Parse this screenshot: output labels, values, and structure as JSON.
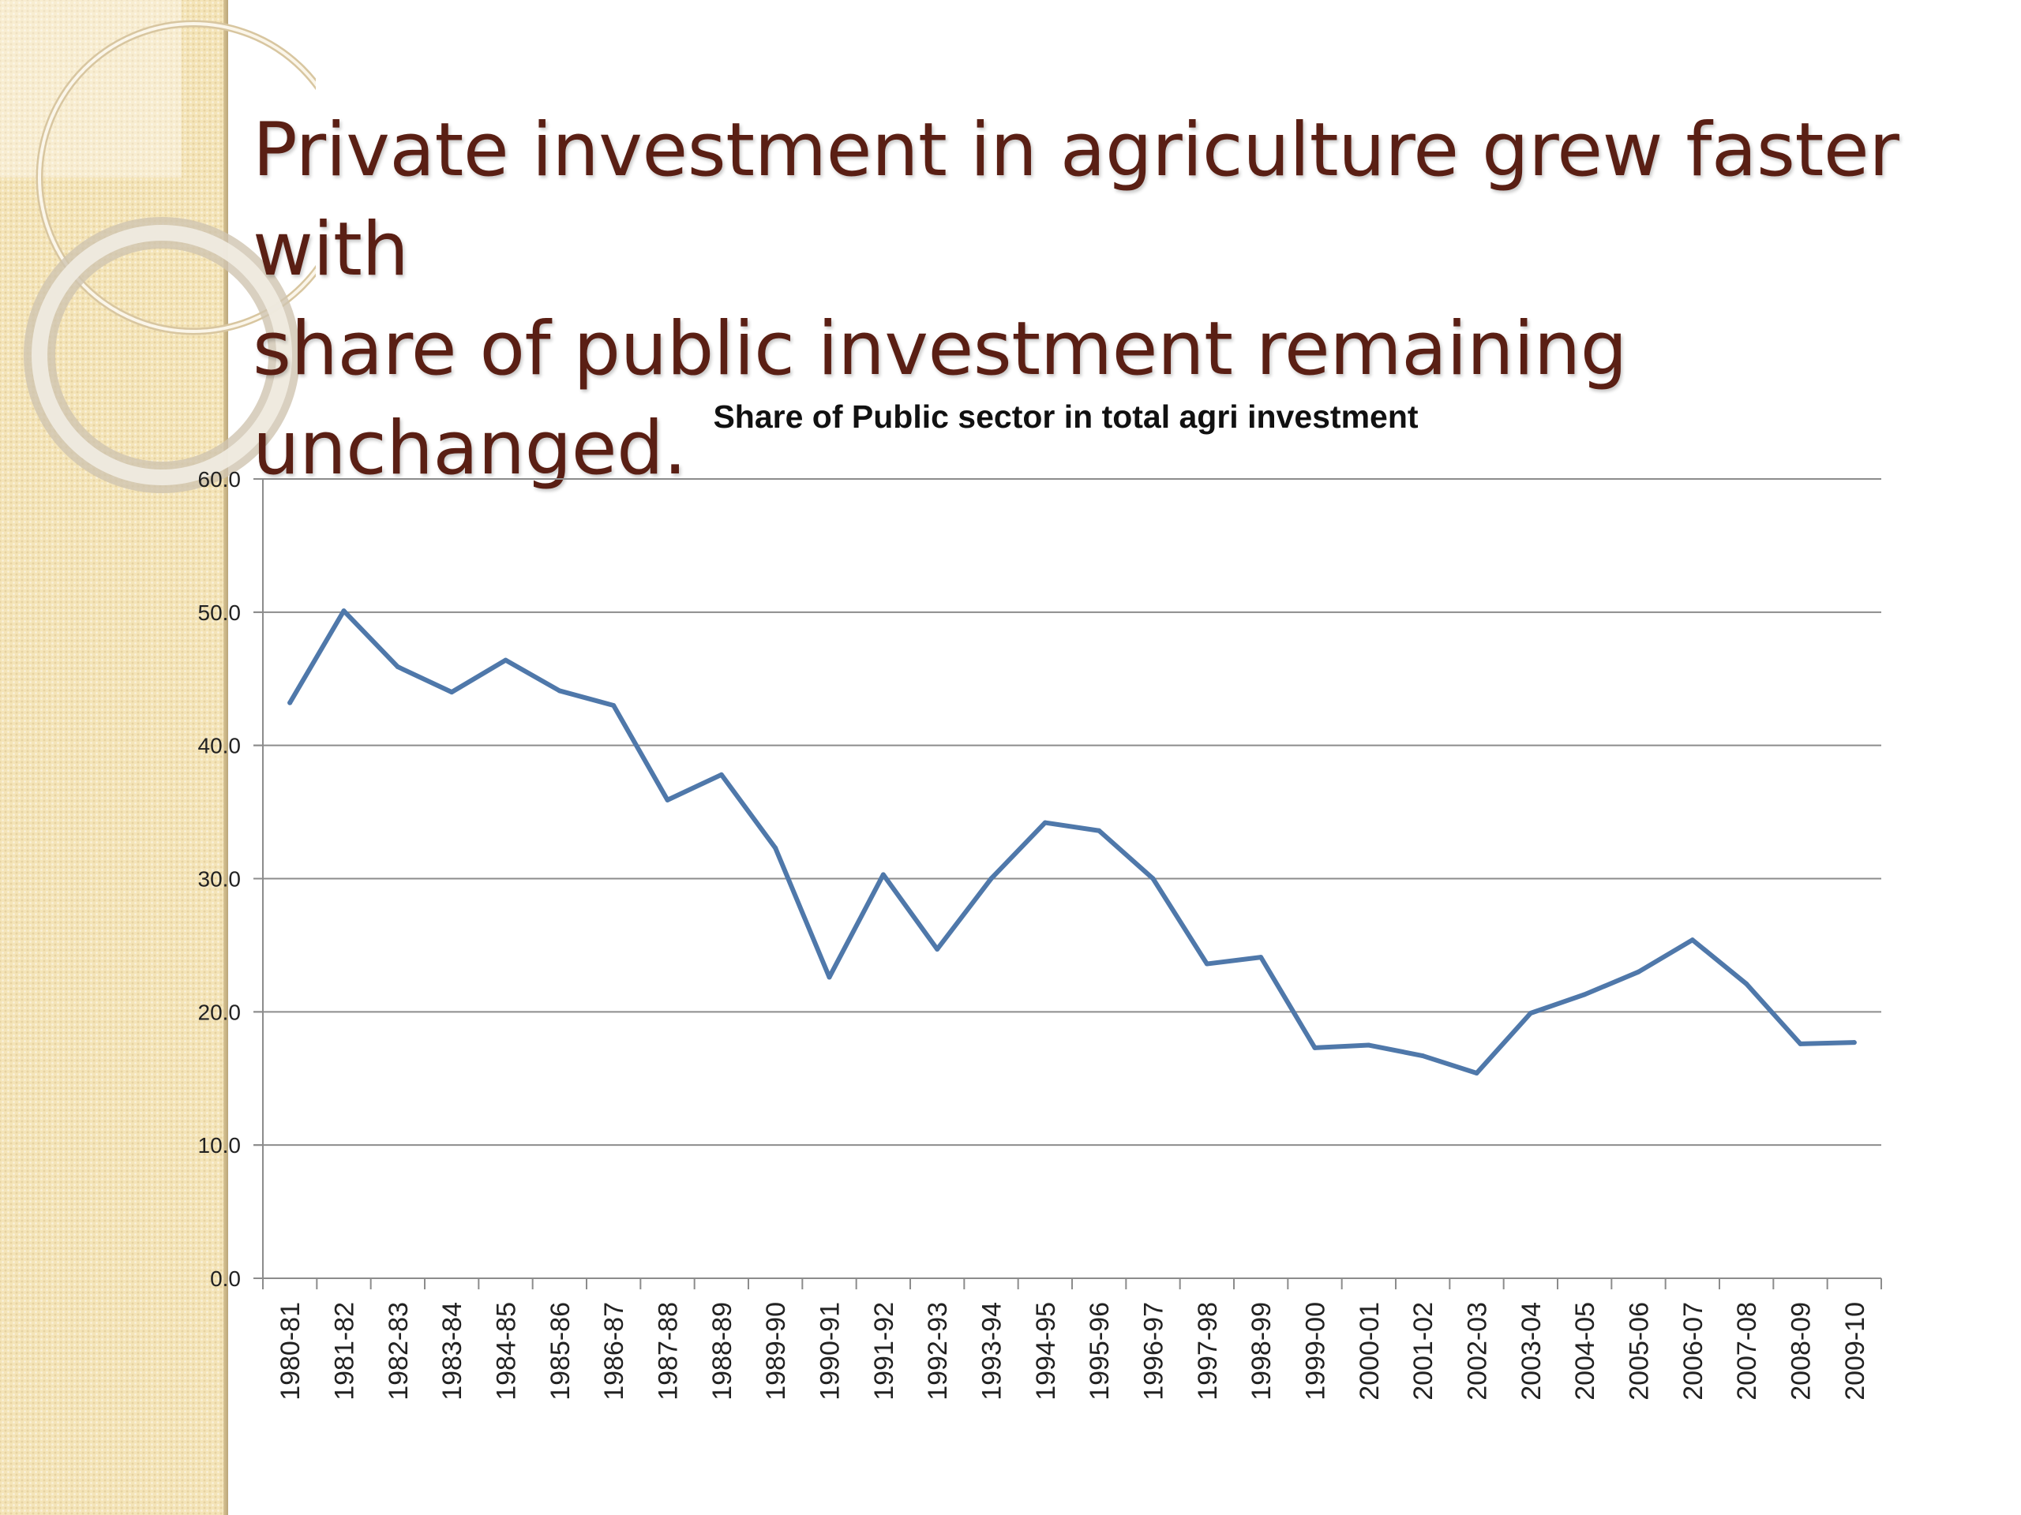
{
  "slide": {
    "title_line1": "Private investment in agriculture grew faster with",
    "title_line2": "share of public investment remaining unchanged."
  },
  "theme": {
    "title_color": "#5a1f14",
    "sidebar_color": "#f4e4b8",
    "series_color": "#4f78aa",
    "gridline_color": "#8c8c8c"
  },
  "chart_data": {
    "type": "line",
    "title": "Share of Public sector in total agri investment",
    "xlabel": "",
    "ylabel": "",
    "ylim": [
      0,
      60
    ],
    "yticks": [
      "0.0",
      "10.0",
      "20.0",
      "30.0",
      "40.0",
      "50.0",
      "60.0"
    ],
    "grid": true,
    "legend": "none",
    "categories": [
      "1980-81",
      "1981-82",
      "1982-83",
      "1983-84",
      "1984-85",
      "1985-86",
      "1986-87",
      "1987-88",
      "1988-89",
      "1989-90",
      "1990-91",
      "1991-92",
      "1992-93",
      "1993-94",
      "1994-95",
      "1995-96",
      "1996-97",
      "1997-98",
      "1998-99",
      "1999-00",
      "2000-01",
      "2001-02",
      "2002-03",
      "2003-04",
      "2004-05",
      "2005-06",
      "2006-07",
      "2007-08",
      "2008-09",
      "2009-10"
    ],
    "series": [
      {
        "values": [
          43.2,
          50.1,
          45.9,
          44.0,
          46.4,
          44.1,
          43.0,
          35.9,
          37.8,
          32.3,
          22.6,
          30.3,
          24.7,
          30.0,
          34.2,
          33.6,
          30.0,
          23.6,
          24.1,
          17.3,
          17.5,
          16.7,
          15.4,
          19.9,
          21.3,
          23.0,
          25.4,
          22.1,
          17.6,
          17.7
        ]
      }
    ]
  }
}
